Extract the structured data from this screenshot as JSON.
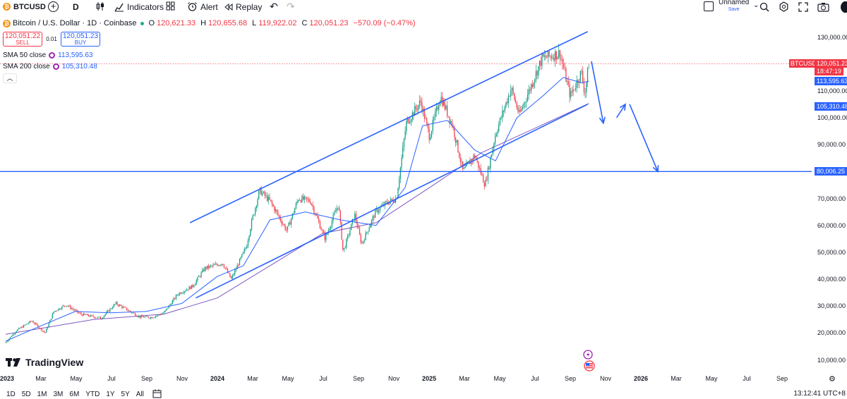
{
  "toolbar": {
    "symbol": "BTCUSD",
    "interval": "D",
    "indicators_label": "Indicators",
    "alert_label": "Alert",
    "replay_label": "Replay",
    "layout_name": "Unnamed",
    "layout_save": "Save"
  },
  "legend": {
    "title": "Bitcoin / U.S. Dollar · 1D · Coinbase",
    "open_key": "O",
    "open": "120,621.33",
    "high_key": "H",
    "high": "120,655.68",
    "low_key": "L",
    "low": "119,922.02",
    "close_key": "C",
    "close": "120,051.23",
    "change": "−570.09 (−0.47%)",
    "sell_price": "120,051.22",
    "sell_label": "SELL",
    "spread": "0.01",
    "buy_price": "120,051.23",
    "buy_label": "BUY",
    "sma50_label": "SMA 50 close",
    "sma50_value": "113,595.63",
    "sma200_label": "SMA 200 close",
    "sma200_value": "105,310.48"
  },
  "watermark": "TradingView",
  "price_axis": {
    "labels": [
      "130,000.00",
      "110,000.00",
      "100,000.00",
      "90,000.00",
      "70,000.00",
      "60,000.00",
      "50,000.00",
      "40,000.00",
      "30,000.00",
      "20,000.00",
      "10,000.00"
    ],
    "tags": {
      "symbol": "BTCUSD",
      "price": "120,051.23",
      "countdown": "18:47:19",
      "sma50": "113,595.63",
      "sma200": "105,310.48",
      "hline": "80,006.25"
    }
  },
  "time_axis": {
    "labels": [
      {
        "text": "2023",
        "year": true
      },
      {
        "text": "Mar"
      },
      {
        "text": "May"
      },
      {
        "text": "Jul"
      },
      {
        "text": "Sep"
      },
      {
        "text": "Nov"
      },
      {
        "text": "2024",
        "year": true
      },
      {
        "text": "Mar"
      },
      {
        "text": "May"
      },
      {
        "text": "Jul"
      },
      {
        "text": "Sep"
      },
      {
        "text": "Nov"
      },
      {
        "text": "2025",
        "year": true
      },
      {
        "text": "Mar"
      },
      {
        "text": "May"
      },
      {
        "text": "Jul"
      },
      {
        "text": "Sep"
      },
      {
        "text": "Nov"
      },
      {
        "text": "2026",
        "year": true
      },
      {
        "text": "Mar"
      },
      {
        "text": "May"
      },
      {
        "text": "Jul"
      },
      {
        "text": "Sep"
      }
    ]
  },
  "bottom_bar": {
    "ranges": [
      "1D",
      "5D",
      "1M",
      "3M",
      "6M",
      "YTD",
      "1Y",
      "5Y",
      "All"
    ],
    "clock": "13:12:41 UTC+8"
  },
  "colors": {
    "up": "#089981",
    "down": "#f23645",
    "trendline": "#2962ff",
    "sma50": "#2962ff",
    "sma200": "#7e57c2",
    "hline": "#2962ff"
  },
  "chart_data": {
    "type": "candlestick",
    "title": "Bitcoin / U.S. Dollar · 1D · Coinbase",
    "x_range": [
      "2023-01",
      "2026-10"
    ],
    "ylim": [
      10000,
      130000
    ],
    "y_ticks": [
      10000,
      20000,
      30000,
      40000,
      50000,
      60000,
      70000,
      80000,
      90000,
      100000,
      110000,
      130000
    ],
    "price_path": [
      [
        "2023-01-01",
        16500
      ],
      [
        "2023-01-20",
        21000
      ],
      [
        "2023-02-15",
        24500
      ],
      [
        "2023-03-10",
        20000
      ],
      [
        "2023-03-25",
        28000
      ],
      [
        "2023-04-15",
        30500
      ],
      [
        "2023-05-10",
        27000
      ],
      [
        "2023-06-15",
        25500
      ],
      [
        "2023-07-10",
        31000
      ],
      [
        "2023-08-20",
        26000
      ],
      [
        "2023-09-10",
        25800
      ],
      [
        "2023-10-01",
        27500
      ],
      [
        "2023-10-25",
        34500
      ],
      [
        "2023-11-20",
        37500
      ],
      [
        "2023-12-10",
        44000
      ],
      [
        "2024-01-10",
        46000
      ],
      [
        "2024-01-25",
        40000
      ],
      [
        "2024-02-20",
        52000
      ],
      [
        "2024-03-01",
        62000
      ],
      [
        "2024-03-14",
        73000
      ],
      [
        "2024-04-01",
        69000
      ],
      [
        "2024-04-30",
        58000
      ],
      [
        "2024-05-20",
        70000
      ],
      [
        "2024-06-10",
        69000
      ],
      [
        "2024-07-05",
        55000
      ],
      [
        "2024-07-28",
        68000
      ],
      [
        "2024-08-05",
        50000
      ],
      [
        "2024-08-25",
        64000
      ],
      [
        "2024-09-06",
        53000
      ],
      [
        "2024-09-30",
        65000
      ],
      [
        "2024-10-20",
        68500
      ],
      [
        "2024-11-05",
        70000
      ],
      [
        "2024-11-22",
        98000
      ],
      [
        "2024-12-17",
        106000
      ],
      [
        "2025-01-01",
        93000
      ],
      [
        "2025-01-20",
        108000
      ],
      [
        "2025-02-10",
        97000
      ],
      [
        "2025-02-28",
        80000
      ],
      [
        "2025-03-20",
        86000
      ],
      [
        "2025-04-07",
        75000
      ],
      [
        "2025-04-25",
        94000
      ],
      [
        "2025-05-22",
        111000
      ],
      [
        "2025-06-05",
        101000
      ],
      [
        "2025-07-14",
        122000
      ],
      [
        "2025-08-14",
        124000
      ],
      [
        "2025-09-01",
        108000
      ],
      [
        "2025-09-20",
        117000
      ],
      [
        "2025-09-26",
        109000
      ],
      [
        "2025-10-03",
        120051
      ]
    ],
    "sma50": [
      [
        "2023-01-01",
        17000
      ],
      [
        "2023-03-01",
        22500
      ],
      [
        "2023-05-01",
        28000
      ],
      [
        "2023-07-01",
        27500
      ],
      [
        "2023-09-01",
        28000
      ],
      [
        "2023-11-01",
        31000
      ],
      [
        "2024-01-01",
        41000
      ],
      [
        "2024-02-15",
        45000
      ],
      [
        "2024-04-01",
        62000
      ],
      [
        "2024-06-01",
        65000
      ],
      [
        "2024-08-01",
        62000
      ],
      [
        "2024-10-01",
        60000
      ],
      [
        "2024-11-20",
        74000
      ],
      [
        "2024-12-20",
        97000
      ],
      [
        "2025-02-01",
        99000
      ],
      [
        "2025-03-20",
        88000
      ],
      [
        "2025-04-25",
        84000
      ],
      [
        "2025-06-01",
        100000
      ],
      [
        "2025-07-15",
        108000
      ],
      [
        "2025-08-20",
        115000
      ],
      [
        "2025-09-20",
        113000
      ],
      [
        "2025-10-03",
        113596
      ]
    ],
    "sma200": [
      [
        "2023-01-01",
        19500
      ],
      [
        "2023-06-01",
        25000
      ],
      [
        "2023-10-01",
        27000
      ],
      [
        "2024-01-01",
        33000
      ],
      [
        "2024-04-01",
        45000
      ],
      [
        "2024-07-01",
        57000
      ],
      [
        "2024-10-01",
        61000
      ],
      [
        "2025-01-01",
        74000
      ],
      [
        "2025-04-01",
        87000
      ],
      [
        "2025-07-01",
        96000
      ],
      [
        "2025-10-03",
        105310
      ]
    ],
    "hline": 80006.25,
    "channel_upper": [
      [
        "2023-11-15",
        61000
      ],
      [
        "2025-10-01",
        132000
      ]
    ],
    "channel_lower": [
      [
        "2023-11-25",
        33000
      ],
      [
        "2025-10-01",
        105000
      ]
    ],
    "projection": [
      [
        "2025-10-05",
        121000
      ],
      [
        "2025-10-28",
        98000
      ],
      [
        "2025-11-15",
        100000
      ],
      [
        "2025-12-05",
        105000
      ],
      [
        "2026-01-30",
        80000
      ]
    ]
  }
}
